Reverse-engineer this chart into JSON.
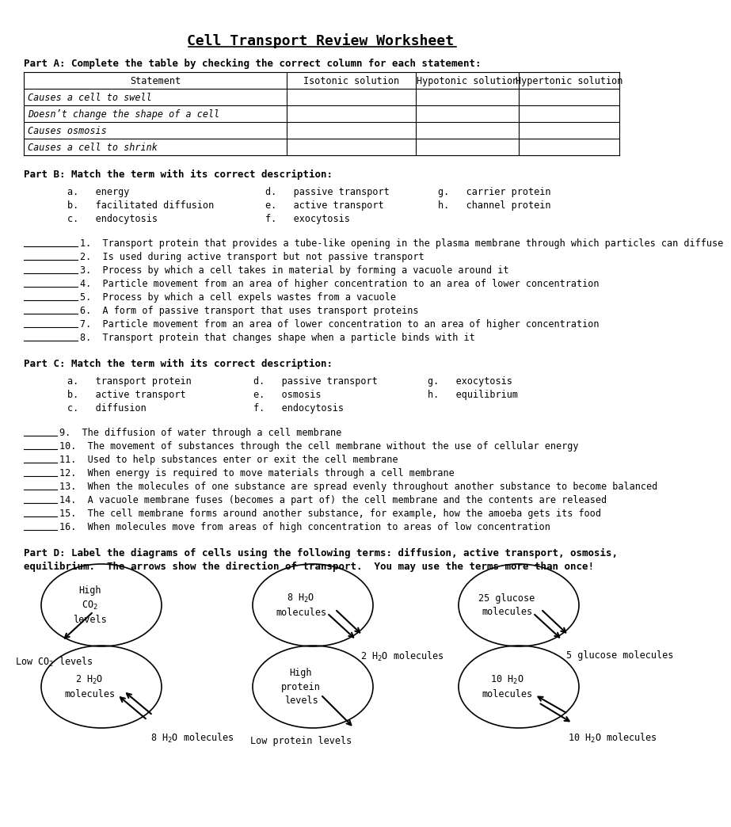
{
  "title": "Cell Transport Review Worksheet",
  "bg_color": "#ffffff",
  "part_a_header": "Part A: Complete the table by checking the correct column for each statement:",
  "table_headers": [
    "Statement",
    "Isotonic solution",
    "Hypotonic solution",
    "Hypertonic solution"
  ],
  "table_rows": [
    "Causes a cell to swell",
    "Doesn’t change the shape of a cell",
    "Causes osmosis",
    "Causes a cell to shrink"
  ],
  "part_b_header": "Part B: Match the term with its correct description:",
  "part_b_terms_col1": [
    "a.   energy",
    "b.   facilitated diffusion",
    "c.   endocytosis"
  ],
  "part_b_terms_col2": [
    "d.   passive transport",
    "e.   active transport",
    "f.   exocytosis"
  ],
  "part_b_terms_col3": [
    "g.   carrier protein",
    "h.   channel protein",
    ""
  ],
  "part_b_questions": [
    "1.  Transport protein that provides a tube-like opening in the plasma membrane through which particles can diffuse",
    "2.  Is used during active transport but not passive transport",
    "3.  Process by which a cell takes in material by forming a vacuole around it",
    "4.  Particle movement from an area of higher concentration to an area of lower concentration",
    "5.  Process by which a cell expels wastes from a vacuole",
    "6.  A form of passive transport that uses transport proteins",
    "7.  Particle movement from an area of lower concentration to an area of higher concentration",
    "8.  Transport protein that changes shape when a particle binds with it"
  ],
  "part_c_header": "Part C: Match the term with its correct description:",
  "part_c_terms_col1": [
    "a.   transport protein",
    "b.   active transport",
    "c.   diffusion"
  ],
  "part_c_terms_col2": [
    "d.   passive transport",
    "e.   osmosis",
    "f.   endocytosis"
  ],
  "part_c_terms_col3": [
    "g.   exocytosis",
    "h.   equilibrium",
    ""
  ],
  "part_c_questions": [
    "9.  The diffusion of water through a cell membrane",
    "10.  The movement of substances through the cell membrane without the use of cellular energy",
    "11.  Used to help substances enter or exit the cell membrane",
    "12.  When energy is required to move materials through a cell membrane",
    "13.  When the molecules of one substance are spread evenly throughout another substance to become balanced",
    "14.  A vacuole membrane fuses (becomes a part of) the cell membrane and the contents are released",
    "15.  The cell membrane forms around another substance, for example, how the amoeba gets its food",
    "16.  When molecules move from areas of high concentration to areas of low concentration"
  ],
  "part_d_header1": "Part D: Label the diagrams of cells using the following terms: diffusion, active transport, osmosis,",
  "part_d_header2": "equilibrium.  The arrows show the direction of transport.  You may use the terms more than once!"
}
